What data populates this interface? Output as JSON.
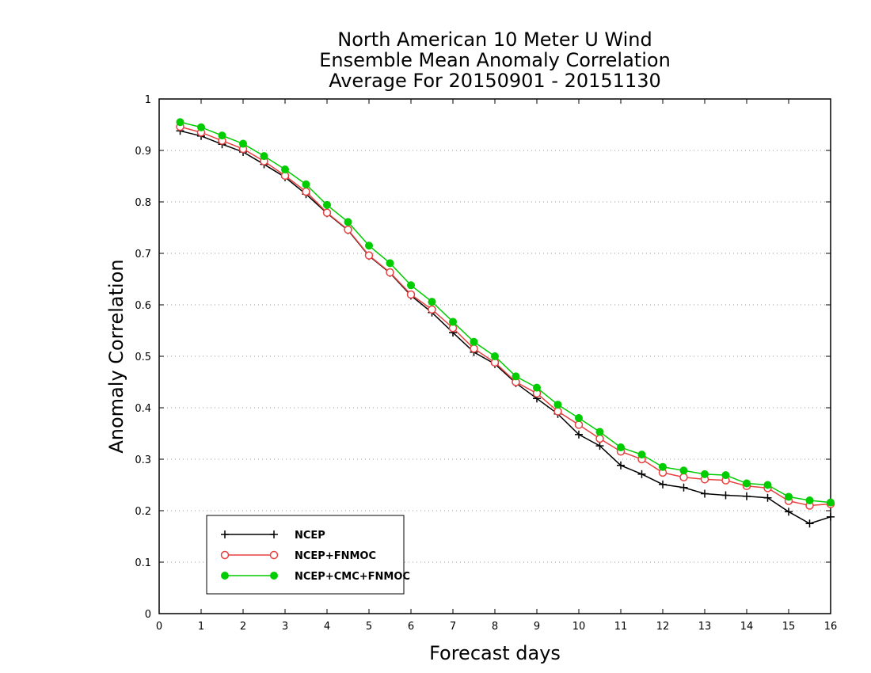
{
  "chart_data": {
    "type": "line",
    "title": [
      "North American 10 Meter U Wind",
      "Ensemble Mean Anomaly Correlation",
      "Average For 20150901 - 20151130"
    ],
    "xlabel": "Forecast days",
    "ylabel": "Anomaly Correlation",
    "xlim": [
      0,
      16
    ],
    "ylim": [
      0,
      1
    ],
    "x_ticks": [
      "0",
      "1",
      "2",
      "3",
      "4",
      "5",
      "6",
      "7",
      "8",
      "9",
      "10",
      "11",
      "12",
      "13",
      "14",
      "15",
      "16"
    ],
    "y_ticks": [
      "0",
      "0.1",
      "0.2",
      "0.3",
      "0.4",
      "0.5",
      "0.6",
      "0.7",
      "0.8",
      "0.9",
      "1"
    ],
    "grid": true,
    "legend_position": "bottom-left",
    "x": [
      0.5,
      1,
      1.5,
      2,
      2.5,
      3,
      3.5,
      4,
      4.5,
      5,
      5.5,
      6,
      6.5,
      7,
      7.5,
      8,
      8.5,
      9,
      9.5,
      10,
      10.5,
      11,
      11.5,
      12,
      12.5,
      13,
      13.5,
      14,
      14.5,
      15,
      15.5,
      16
    ],
    "series": [
      {
        "name": "NCEP",
        "color": "#000000",
        "marker": "plus",
        "values": [
          0.938,
          0.928,
          0.912,
          0.897,
          0.873,
          0.848,
          0.815,
          0.778,
          0.745,
          0.695,
          0.662,
          0.618,
          0.585,
          0.546,
          0.508,
          0.485,
          0.448,
          0.418,
          0.388,
          0.348,
          0.326,
          0.288,
          0.271,
          0.251,
          0.245,
          0.233,
          0.23,
          0.228,
          0.225,
          0.198,
          0.175,
          0.188
        ]
      },
      {
        "name": "NCEP+FNMOC",
        "color": "#e84040",
        "marker": "open-circle",
        "values": [
          0.946,
          0.935,
          0.919,
          0.903,
          0.879,
          0.851,
          0.82,
          0.779,
          0.746,
          0.696,
          0.663,
          0.62,
          0.591,
          0.555,
          0.515,
          0.488,
          0.45,
          0.428,
          0.393,
          0.367,
          0.34,
          0.315,
          0.3,
          0.274,
          0.265,
          0.261,
          0.259,
          0.248,
          0.244,
          0.219,
          0.21,
          0.213
        ]
      },
      {
        "name": "NCEP+CMC+FNMOC",
        "color": "#00cc00",
        "marker": "filled-circle",
        "values": [
          0.955,
          0.945,
          0.929,
          0.913,
          0.889,
          0.863,
          0.834,
          0.794,
          0.761,
          0.715,
          0.681,
          0.638,
          0.606,
          0.567,
          0.528,
          0.5,
          0.461,
          0.439,
          0.406,
          0.38,
          0.353,
          0.323,
          0.309,
          0.285,
          0.278,
          0.271,
          0.269,
          0.253,
          0.25,
          0.227,
          0.22,
          0.216
        ]
      }
    ]
  }
}
